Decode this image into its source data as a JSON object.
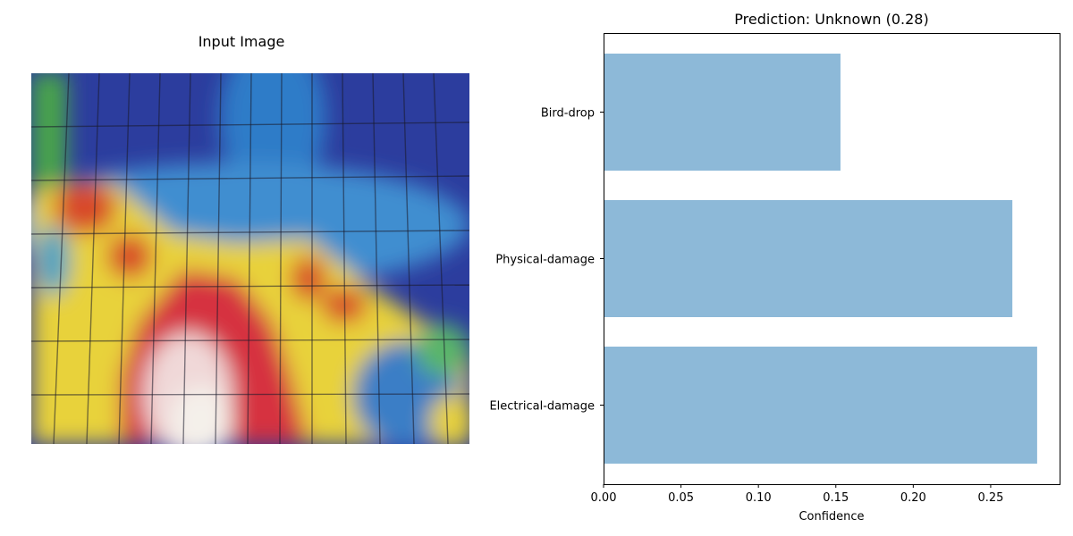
{
  "figure": {
    "image_panel_title": "Input Image"
  },
  "chart_data": {
    "type": "bar",
    "orientation": "horizontal",
    "title": "Prediction: Unknown (0.28)",
    "xlabel": "Confidence",
    "ylabel": "",
    "categories": [
      "Electrical-damage",
      "Physical-damage",
      "Bird-drop"
    ],
    "values": [
      0.28,
      0.264,
      0.153
    ],
    "xlim": [
      0,
      0.2945
    ],
    "xticks": [
      "0.00",
      "0.05",
      "0.10",
      "0.15",
      "0.20",
      "0.25"
    ],
    "bar_color": "#8db9d8",
    "grid": false
  }
}
